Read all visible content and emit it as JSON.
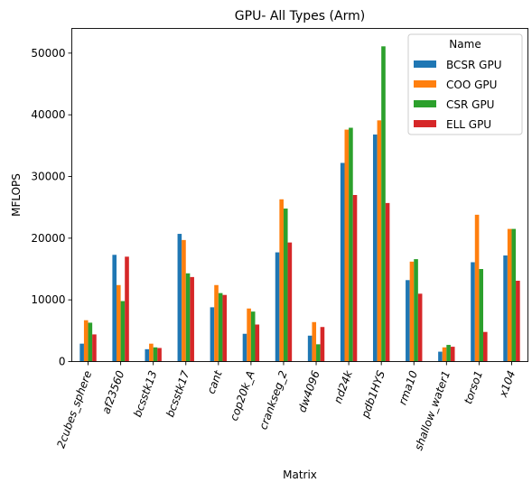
{
  "chart_data": {
    "type": "bar",
    "title": "GPU- All Types (Arm)",
    "xlabel": "Matrix",
    "ylabel": "MFLOPS",
    "ylim": [
      0,
      54000
    ],
    "yticks": [
      0,
      10000,
      20000,
      30000,
      40000,
      50000
    ],
    "grid": false,
    "legend": {
      "title": "Name",
      "placement": "top-right"
    },
    "categories": [
      "2cubes_sphere",
      "af23560",
      "bcsstk13",
      "bcsstk17",
      "cant",
      "cop20k_A",
      "crankseg_2",
      "dw4096",
      "nd24k",
      "pdb1HYS",
      "rma10",
      "shallow_water1",
      "torso1",
      "x104"
    ],
    "series": [
      {
        "name": "BCSR GPU",
        "color": "#1f77b4",
        "values": [
          2900,
          17300,
          2000,
          20700,
          8800,
          4500,
          17700,
          4200,
          32200,
          36800,
          13200,
          1600,
          16100,
          17200
        ]
      },
      {
        "name": "COO GPU",
        "color": "#ff7f0e",
        "values": [
          6700,
          12400,
          2900,
          19700,
          12400,
          8600,
          26300,
          6400,
          37600,
          39100,
          16200,
          2300,
          23800,
          21500
        ]
      },
      {
        "name": "CSR GPU",
        "color": "#2ca02c",
        "values": [
          6300,
          9800,
          2300,
          14300,
          11100,
          8100,
          24800,
          2800,
          37900,
          51100,
          16600,
          2700,
          15000,
          21500
        ]
      },
      {
        "name": "ELL GPU",
        "color": "#d62728",
        "values": [
          4400,
          17000,
          2200,
          13700,
          10800,
          6000,
          19300,
          5600,
          27000,
          25700,
          11000,
          2400,
          4800,
          13100
        ]
      }
    ]
  }
}
